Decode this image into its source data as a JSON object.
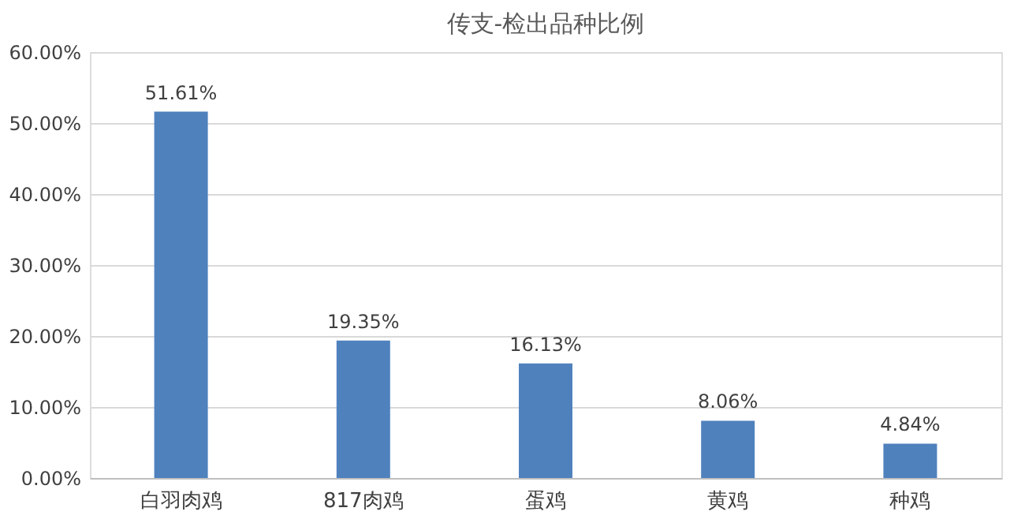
{
  "chart_data": {
    "type": "bar",
    "title": "传支-检出品种比例",
    "categories": [
      "白羽肉鸡",
      "817肉鸡",
      "蛋鸡",
      "黄鸡",
      "种鸡"
    ],
    "values": [
      51.61,
      19.35,
      16.13,
      8.06,
      4.84
    ],
    "value_labels": [
      "51.61%",
      "19.35%",
      "16.13%",
      "8.06%",
      "4.84%"
    ],
    "color": "#4f81bd",
    "ylim": [
      0,
      60
    ],
    "yticks": [
      {
        "value": 0,
        "label": "0.00%"
      },
      {
        "value": 10,
        "label": "10.00%"
      },
      {
        "value": 20,
        "label": "20.00%"
      },
      {
        "value": 30,
        "label": "30.00%"
      },
      {
        "value": 40,
        "label": "40.00%"
      },
      {
        "value": 50,
        "label": "50.00%"
      },
      {
        "value": 60,
        "label": "60.00%"
      }
    ],
    "grid": "y"
  }
}
